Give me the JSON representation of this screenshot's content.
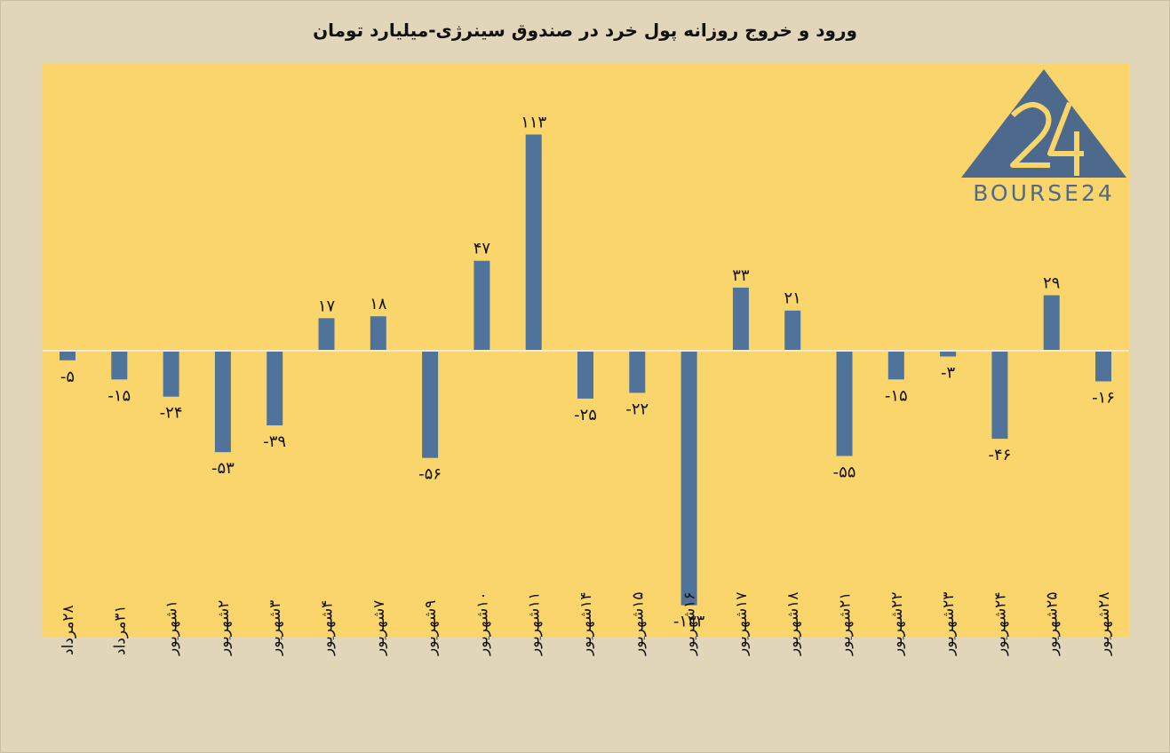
{
  "title": "ورود و خروج روزانه پول خرد در صندوق سینرژی-میلیارد تومان",
  "logo": {
    "text": "BOURSE24",
    "mark": "24",
    "icon": "bourse24-triangle-logo"
  },
  "colors": {
    "background": "#e1d6ba",
    "plot": "#fad56c",
    "bar": "#50739b",
    "zero_line": "#f3ead1",
    "text": "#111111"
  },
  "chart_data": {
    "type": "bar",
    "title": "ورود و خروج روزانه پول خرد در صندوق سینرژی-میلیارد تومان",
    "categories": [
      "۲۸مرداد",
      "۳۱مرداد",
      "۱شهریور",
      "۲شهریور",
      "۳شهریور",
      "۴شهریور",
      "۷شهریور",
      "۹شهریور",
      "۱۰شهریور",
      "۱۱شهریور",
      "۱۴شهریور",
      "۱۵شهریور",
      "۱۶شهریور",
      "۱۷شهریور",
      "۱۸شهریور",
      "۲۱شهریور",
      "۲۲شهریور",
      "۲۳شهریور",
      "۲۴شهریور",
      "۲۵شهریور",
      "۲۸شهریور"
    ],
    "values": [
      -5,
      -15,
      -24,
      -53,
      -39,
      17,
      18,
      -56,
      47,
      113,
      -25,
      -22,
      -133,
      33,
      21,
      -55,
      -15,
      -3,
      -46,
      29,
      -16
    ],
    "labels": [
      "-۵",
      "-۱۵",
      "-۲۴",
      "-۵۳",
      "-۳۹",
      "۱۷",
      "۱۸",
      "-۵۶",
      "۴۷",
      "۱۱۳",
      "-۲۵",
      "-۲۲",
      "-۱۳۳",
      "۳۳",
      "۲۱",
      "-۵۵",
      "-۱۵",
      "-۳",
      "-۴۶",
      "۲۹",
      "-۱۶"
    ],
    "xlabel": "",
    "ylabel": "",
    "ylim": [
      -150,
      150
    ],
    "grid": false,
    "legend": "none"
  }
}
